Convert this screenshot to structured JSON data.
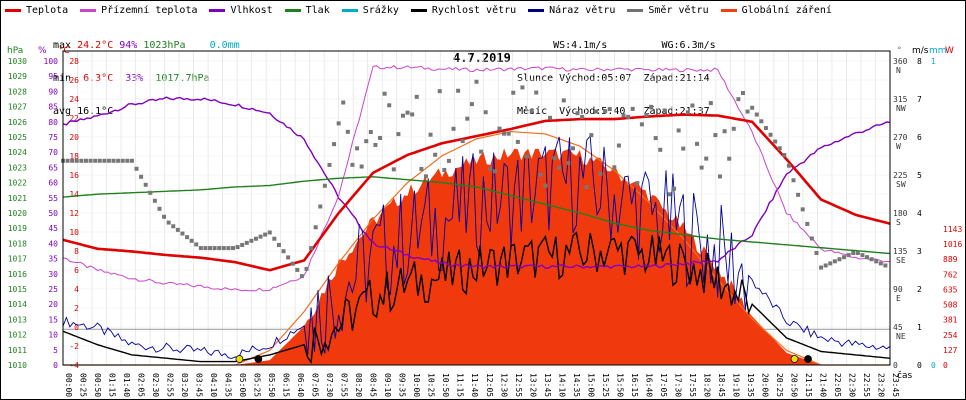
{
  "legend": [
    {
      "label": "Teplota",
      "color": "#e00000"
    },
    {
      "label": "Přízemní teplota",
      "color": "#cc44cc"
    },
    {
      "label": "Vlhkost",
      "color": "#8000c0"
    },
    {
      "label": "Tlak",
      "color": "#208020"
    },
    {
      "label": "Srážky",
      "color": "#00aacc"
    },
    {
      "label": "Rychlost větru",
      "color": "#000000"
    },
    {
      "label": "Náraz větru",
      "color": "#000080"
    },
    {
      "label": "Směr větru",
      "color": "#707070"
    },
    {
      "label": "Globální záření",
      "color": "#f04010"
    }
  ],
  "stats": {
    "max_label": "max",
    "max_temp": "24.2°C",
    "max_hum": "94%",
    "max_press": "1023hPa",
    "max_rain": "0.0mm",
    "min_label": "min",
    "min_temp": "6.3°C",
    "min_hum": "33%",
    "min_press": "1017.7hPa",
    "avg_label": "avg",
    "avg_temp": "16.1°C"
  },
  "sun": {
    "ws": "WS:4.1m/s",
    "wg": "WG:6.3m/s",
    "slunce": "Slunce",
    "slunce_rise": "Východ:05:07",
    "slunce_set": "Západ:21:14",
    "mesic": "Měsíc",
    "mesic_rise": "Východ:5:40",
    "mesic_set": "Západ:21:37"
  },
  "date": "4.7.2019",
  "axes": {
    "hpa_unit": "hPa",
    "pct_unit": "%",
    "c_unit": "°C",
    "dir_unit": "°",
    "ms_unit": "m/s",
    "mm_unit": "mm",
    "w_unit": "W",
    "time_label": "čas",
    "hpa_ticks": [
      "1030",
      "1029",
      "1028",
      "1027",
      "1026",
      "1025",
      "1024",
      "1023",
      "1022",
      "1021",
      "1020",
      "1019",
      "1018",
      "1017",
      "1016",
      "1015",
      "1014",
      "1013",
      "1012",
      "1011",
      "1010"
    ],
    "pct_ticks": [
      "100",
      "95",
      "90",
      "85",
      "80",
      "75",
      "70",
      "65",
      "60",
      "55",
      "50",
      "45",
      "40",
      "35",
      "30",
      "25",
      "20",
      "15",
      "10",
      "5",
      "0"
    ],
    "c_ticks": [
      "28",
      "26",
      "24",
      "22",
      "20",
      "18",
      "16",
      "14",
      "12",
      "10",
      "8",
      "6",
      "4",
      "2",
      "0",
      "-2",
      "-4"
    ],
    "dir_ticks": [
      {
        "v": "360",
        "d": "N"
      },
      {
        "v": "315",
        "d": "NW"
      },
      {
        "v": "270",
        "d": "W"
      },
      {
        "v": "225",
        "d": "SW"
      },
      {
        "v": "180",
        "d": "S"
      },
      {
        "v": "135",
        "d": "SE"
      },
      {
        "v": "90",
        "d": "E"
      },
      {
        "v": "45",
        "d": "NE"
      },
      {
        "v": "0",
        "d": ""
      }
    ],
    "ms_ticks": [
      "8",
      "7",
      "6",
      "5",
      "4",
      "3",
      "2",
      "1",
      "0"
    ],
    "mm_ticks": [
      "1",
      "0"
    ],
    "w_ticks": [
      "1143",
      "1016",
      "889",
      "762",
      "635",
      "508",
      "381",
      "254",
      "127",
      "0"
    ]
  },
  "chart_data": {
    "type": "line",
    "title": "4.7.2019",
    "x_ticks": [
      "00:00",
      "00:25",
      "00:50",
      "01:15",
      "01:40",
      "02:05",
      "02:30",
      "02:55",
      "03:20",
      "03:45",
      "04:10",
      "04:35",
      "05:00",
      "05:25",
      "05:50",
      "06:15",
      "06:40",
      "07:05",
      "07:30",
      "07:55",
      "08:20",
      "08:45",
      "09:10",
      "09:35",
      "10:00",
      "10:25",
      "10:50",
      "11:15",
      "11:40",
      "12:05",
      "12:30",
      "12:55",
      "13:20",
      "13:45",
      "14:10",
      "14:35",
      "15:00",
      "15:25",
      "15:50",
      "16:15",
      "16:40",
      "17:05",
      "17:30",
      "17:55",
      "18:20",
      "18:45",
      "19:10",
      "19:35",
      "20:00",
      "20:25",
      "20:50",
      "21:15",
      "21:40",
      "22:05",
      "22:30",
      "22:55",
      "23:20",
      "23:45"
    ],
    "hours": [
      0,
      1,
      2,
      3,
      4,
      5,
      6,
      7,
      8,
      9,
      10,
      11,
      12,
      13,
      14,
      15,
      16,
      17,
      18,
      19,
      20,
      21,
      22,
      23,
      24
    ],
    "series": [
      {
        "name": "Teplota",
        "unit": "°C",
        "values": [
          10.0,
          9.0,
          8.7,
          8.3,
          8.0,
          7.5,
          6.6,
          7.7,
          13.0,
          17.5,
          19.5,
          20.8,
          21.6,
          22.4,
          23.3,
          23.5,
          23.5,
          23.8,
          24.0,
          23.9,
          23.2,
          19.0,
          14.5,
          12.8,
          11.8
        ]
      },
      {
        "name": "Přízemní teplota",
        "unit": "°C",
        "values": [
          8.0,
          6.6,
          5.7,
          5.1,
          4.8,
          4.4,
          4.5,
          6.0,
          15.0,
          29.3,
          29.3,
          29.1,
          29.0,
          29.1,
          29.2,
          29.0,
          29.1,
          29.0,
          29.0,
          29.0,
          22.0,
          13.0,
          9.0,
          8.0,
          7.6
        ]
      },
      {
        "name": "Vlhkost",
        "unit": "%",
        "values": [
          83,
          86,
          90,
          92,
          92,
          90,
          87,
          78,
          58,
          42,
          38,
          35,
          34,
          34,
          34,
          34,
          34,
          34,
          35,
          36,
          45,
          66,
          75,
          80,
          84
        ]
      },
      {
        "name": "Tlak",
        "unit": "hPa",
        "values": [
          1021.6,
          1021.8,
          1021.9,
          1022.0,
          1022.1,
          1022.3,
          1022.4,
          1022.7,
          1022.9,
          1023.0,
          1022.8,
          1022.6,
          1022.3,
          1021.7,
          1021.1,
          1020.5,
          1019.8,
          1019.3,
          1019.0,
          1018.7,
          1018.5,
          1018.3,
          1018.1,
          1017.9,
          1017.7
        ]
      },
      {
        "name": "Rychlost větru",
        "unit": "m/s",
        "values": [
          1.0,
          0.6,
          0.3,
          0.2,
          0.1,
          0.1,
          0.3,
          0.6,
          1.2,
          2.0,
          2.4,
          2.6,
          2.9,
          3.1,
          3.2,
          3.3,
          3.4,
          3.2,
          3.0,
          2.5,
          1.8,
          0.8,
          0.4,
          0.3,
          0.2
        ]
      },
      {
        "name": "Náraz větru",
        "unit": "m/s",
        "values": [
          1.3,
          1.1,
          0.6,
          0.5,
          0.4,
          0.3,
          0.6,
          1.2,
          2.2,
          3.2,
          3.8,
          4.3,
          4.8,
          5.0,
          5.3,
          5.5,
          5.0,
          4.5,
          4.0,
          3.3,
          2.5,
          1.3,
          0.8,
          0.6,
          0.5
        ]
      },
      {
        "name": "Směr větru",
        "unit": "°",
        "values": [
          262,
          262,
          262,
          185,
          150,
          150,
          170,
          110,
          310,
          300,
          290,
          300,
          310,
          300,
          290,
          285,
          290,
          280,
          275,
          290,
          330,
          265,
          125,
          145,
          125
        ]
      },
      {
        "name": "Globální záření",
        "unit": "W",
        "values": [
          0,
          0,
          0,
          0,
          0,
          0,
          20,
          160,
          420,
          590,
          710,
          790,
          840,
          870,
          870,
          860,
          800,
          700,
          560,
          400,
          200,
          50,
          0,
          0,
          0
        ]
      }
    ],
    "ylim_c": [
      -4,
      30
    ],
    "ylim_pct": [
      0,
      105
    ],
    "ylim_hpa": [
      1010,
      1031
    ],
    "ylim_ms": [
      0,
      9
    ],
    "ylim_w": [
      0,
      1250
    ],
    "ylim_dir": [
      0,
      390
    ]
  }
}
